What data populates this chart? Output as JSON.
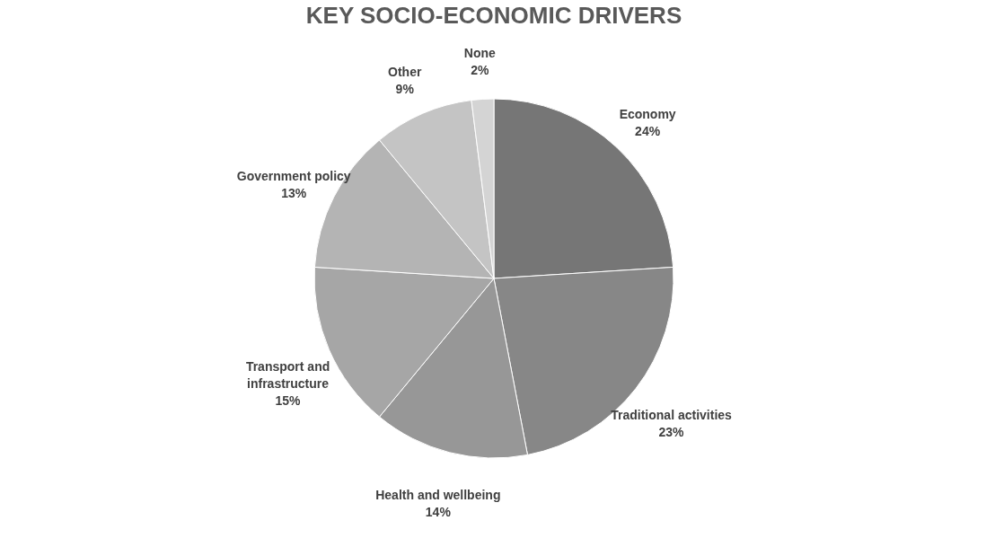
{
  "chart_data": {
    "type": "pie",
    "title": "KEY SOCIO-ECONOMIC DRIVERS",
    "categories": [
      "Economy",
      "Traditional activities",
      "Health and wellbeing",
      "Transport and infrastructure",
      "Government policy",
      "Other",
      "None"
    ],
    "values": [
      24,
      23,
      14,
      15,
      13,
      9,
      2
    ],
    "value_labels": [
      "24%",
      "23%",
      "14%",
      "15%",
      "13%",
      "9%",
      "2%"
    ],
    "colors": [
      "#767676",
      "#878787",
      "#979797",
      "#a6a6a6",
      "#b4b4b4",
      "#c4c4c4",
      "#d4d4d4"
    ],
    "legend": false
  }
}
